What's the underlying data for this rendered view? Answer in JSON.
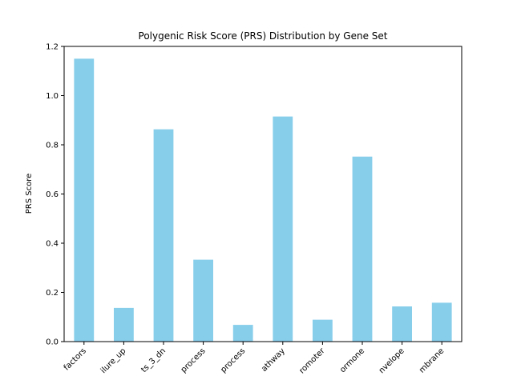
{
  "chart_data": {
    "type": "bar",
    "title": "Polygenic Risk Score (PRS) Distribution by Gene Set",
    "xlabel": "",
    "ylabel": "PRS Score",
    "categories": [
      "factors",
      "ilure_up",
      "ts_3_dn",
      "process",
      "process",
      "athway",
      "romoter",
      "ormone",
      "nvelope",
      "mbrane"
    ],
    "values": [
      1.15,
      0.137,
      0.863,
      0.333,
      0.068,
      0.915,
      0.089,
      0.752,
      0.143,
      0.158
    ],
    "ylim": [
      0,
      1.2
    ],
    "yticks": [
      "0.0",
      "0.2",
      "0.4",
      "0.6",
      "0.8",
      "1.0",
      "1.2"
    ],
    "bar_color": "#87ceeb",
    "grid": false,
    "legend": "none"
  }
}
